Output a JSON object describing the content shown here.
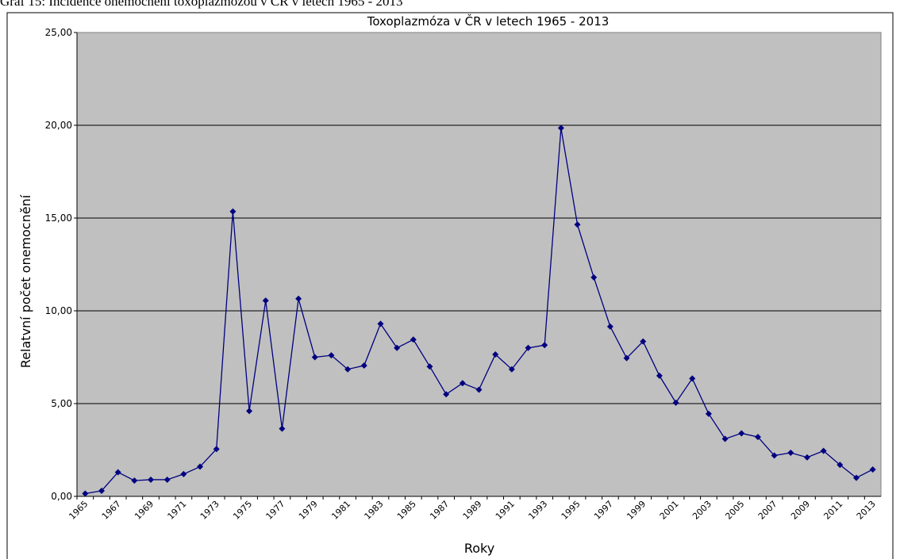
{
  "caption": "Graf 15: Incidence onemocnění toxoplazmózou v ČR v letech 1965 - 2013",
  "chart_data": {
    "type": "line",
    "title": "Toxoplazmóza v ČR v letech 1965 - 2013",
    "x_label": "Roky",
    "y_label": "Relatvní počet onemocnění",
    "categories": [
      "1965",
      null,
      "1967",
      null,
      "1969",
      null,
      "1971",
      null,
      "1973",
      null,
      "1975",
      null,
      "1977",
      null,
      "1979",
      null,
      "1981",
      null,
      "1983",
      null,
      "1985",
      null,
      "1987",
      null,
      "1989",
      null,
      "1991",
      null,
      "1993",
      null,
      "1995",
      null,
      "1997",
      null,
      "1999",
      null,
      "2001",
      null,
      "2003",
      null,
      "2005",
      null,
      "2007",
      null,
      "2009",
      null,
      "2011",
      null,
      "2013"
    ],
    "series": [
      {
        "color": "#000080",
        "values": [
          0.15,
          0.3,
          1.3,
          0.85,
          0.9,
          0.9,
          1.2,
          1.6,
          2.55,
          15.35,
          4.6,
          10.55,
          3.65,
          10.65,
          7.5,
          7.6,
          6.85,
          7.05,
          9.3,
          8.0,
          8.45,
          7.0,
          5.5,
          6.1,
          5.75,
          7.65,
          6.85,
          8.0,
          8.15,
          19.85,
          14.65,
          11.8,
          9.15,
          7.45,
          8.35,
          6.5,
          5.05,
          6.35,
          4.45,
          3.1,
          3.4,
          3.2,
          2.2,
          2.35,
          2.1,
          2.45,
          1.7,
          1.0,
          1.45
        ]
      }
    ],
    "ylim": [
      0,
      25
    ],
    "yticks": [
      {
        "value": 0,
        "label": "0,00"
      },
      {
        "value": 5,
        "label": "5,00"
      },
      {
        "value": 10,
        "label": "10,00"
      },
      {
        "value": 15,
        "label": "15,00"
      },
      {
        "value": 20,
        "label": "20,00"
      },
      {
        "value": 25,
        "label": "25,00"
      }
    ],
    "grid": true,
    "plot_background": "#c0c0c0"
  }
}
